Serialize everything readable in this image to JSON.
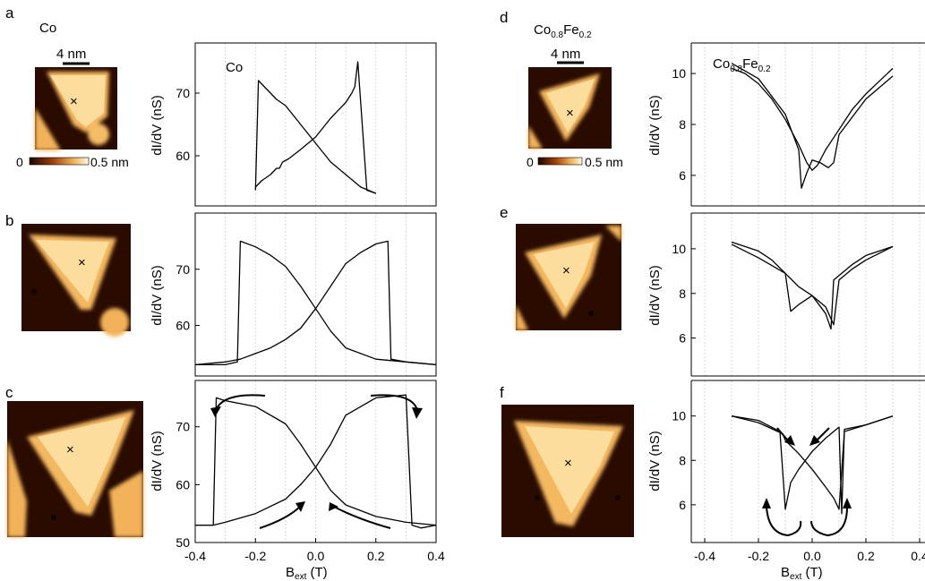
{
  "panels": {
    "a": {
      "letter": "a",
      "material": "Co",
      "scalebar": "4 nm"
    },
    "b": {
      "letter": "b"
    },
    "c": {
      "letter": "c"
    },
    "d": {
      "letter": "d",
      "material": "Co",
      "scalebar": "4 nm"
    },
    "e": {
      "letter": "e"
    },
    "f": {
      "letter": "f"
    }
  },
  "colorbar": {
    "min": "0",
    "max": "0.5 nm"
  },
  "colors": {
    "stm_dark": "#2a0b00",
    "stm_mid": "#b0581a",
    "stm_light": "#f7c978",
    "stm_top": "#fff3d8",
    "line": "#000000"
  },
  "labels": {
    "ylabel_main": "dI/dV (nS)",
    "xlabel_main": "B",
    "xlabel_sub": "ext",
    "xlabel_unit": " (T)",
    "plot_a_title": "Co",
    "alloy_base1": "Co",
    "alloy_sub1": "0.8",
    "alloy_base2": "Fe",
    "alloy_sub2": "0.2"
  },
  "chart_data": [
    {
      "type": "line",
      "panel": "a",
      "title": "Co",
      "xlabel": "Bext (T)",
      "ylabel": "dI/dV (nS)",
      "xlim": [
        -0.4,
        0.4
      ],
      "ylim": [
        52,
        78
      ],
      "yticks": [
        60,
        70
      ],
      "series": [
        {
          "x": [
            -0.2,
            -0.18,
            -0.15,
            -0.13,
            -0.12,
            -0.11,
            -0.09,
            -0.05,
            0.0,
            0.05,
            0.1,
            0.12,
            0.13,
            0.14,
            0.17,
            0.2
          ],
          "values": [
            55,
            56,
            57,
            58,
            58,
            59,
            59.5,
            61,
            63,
            66,
            68.5,
            70,
            71,
            75,
            54.5,
            54
          ]
        },
        {
          "x": [
            0.2,
            0.15,
            0.1,
            0.05,
            0.0,
            -0.05,
            -0.1,
            -0.13,
            -0.15,
            -0.17,
            -0.19,
            -0.2
          ],
          "values": [
            54,
            55,
            57,
            59,
            62,
            65,
            68,
            69,
            70,
            71,
            72,
            54.5
          ]
        }
      ]
    },
    {
      "type": "line",
      "panel": "b",
      "xlabel": "Bext (T)",
      "ylabel": "dI/dV (nS)",
      "xlim": [
        -0.4,
        0.4
      ],
      "ylim": [
        51,
        80
      ],
      "yticks": [
        60,
        70
      ],
      "series": [
        {
          "x": [
            -0.4,
            -0.3,
            -0.25,
            -0.2,
            -0.15,
            -0.1,
            -0.05,
            0.0,
            0.05,
            0.1,
            0.15,
            0.2,
            0.24,
            0.25,
            0.3,
            0.4
          ],
          "values": [
            53,
            53.5,
            54,
            55,
            56,
            57.5,
            59.5,
            63,
            67,
            71,
            73,
            74.5,
            75,
            54,
            53.5,
            53
          ]
        },
        {
          "x": [
            0.4,
            0.3,
            0.2,
            0.1,
            0.05,
            0.0,
            -0.05,
            -0.1,
            -0.15,
            -0.2,
            -0.25,
            -0.26,
            -0.3,
            -0.4
          ],
          "values": [
            53,
            53.5,
            54,
            56,
            59,
            63,
            67,
            70.5,
            72.5,
            74,
            75,
            53.5,
            53,
            53
          ]
        }
      ]
    },
    {
      "type": "line",
      "panel": "c",
      "xlabel": "Bext (T)",
      "ylabel": "dI/dV (nS)",
      "xlim": [
        -0.4,
        0.4
      ],
      "ylim": [
        50,
        78
      ],
      "yticks": [
        50,
        60,
        70
      ],
      "xticks": [
        -0.4,
        -0.2,
        0.0,
        0.2,
        0.4
      ],
      "series": [
        {
          "x": [
            -0.4,
            -0.34,
            -0.3,
            -0.2,
            -0.1,
            -0.05,
            0.0,
            0.05,
            0.1,
            0.2,
            0.3,
            0.32,
            0.35,
            0.4
          ],
          "values": [
            53,
            53,
            53.5,
            55,
            57.5,
            60,
            63,
            67,
            72,
            75,
            75.5,
            53,
            52.5,
            53
          ]
        },
        {
          "x": [
            0.4,
            0.3,
            0.2,
            0.1,
            0.05,
            0.0,
            -0.05,
            -0.1,
            -0.2,
            -0.3,
            -0.33,
            -0.34,
            -0.4
          ],
          "values": [
            53,
            53.5,
            54.5,
            56.5,
            59,
            63,
            67,
            70.5,
            73.5,
            74.5,
            75,
            53,
            53
          ]
        }
      ]
    },
    {
      "type": "line",
      "panel": "d",
      "title": "Co0.8Fe0.2",
      "xlabel": "Bext (T)",
      "ylabel": "dI/dV (nS)",
      "xlim": [
        -0.45,
        0.42
      ],
      "ylim": [
        4.8,
        11.2
      ],
      "yticks": [
        6,
        8,
        10
      ],
      "series": [
        {
          "x": [
            -0.3,
            -0.25,
            -0.2,
            -0.15,
            -0.1,
            -0.05,
            -0.02,
            0.0,
            0.02,
            0.05,
            0.1,
            0.15,
            0.2,
            0.25,
            0.3
          ],
          "values": [
            10.2,
            10,
            9.6,
            9,
            8.2,
            7.2,
            6.5,
            6.2,
            6.4,
            7,
            7.8,
            8.6,
            9.2,
            9.7,
            10.2
          ]
        },
        {
          "x": [
            -0.3,
            -0.2,
            -0.1,
            -0.05,
            -0.04,
            -0.02,
            0.0,
            0.03,
            0.06,
            0.08,
            0.1,
            0.2,
            0.3
          ],
          "values": [
            10.4,
            9.8,
            8.4,
            7,
            5.5,
            6.1,
            6.6,
            6.5,
            6.3,
            6.5,
            7.6,
            9,
            9.9
          ]
        }
      ]
    },
    {
      "type": "line",
      "panel": "e",
      "xlabel": "Bext (T)",
      "ylabel": "dI/dV (nS)",
      "xlim": [
        -0.45,
        0.42
      ],
      "ylim": [
        4.3,
        11.6
      ],
      "yticks": [
        6,
        8,
        10
      ],
      "series": [
        {
          "x": [
            -0.3,
            -0.2,
            -0.15,
            -0.1,
            -0.08,
            -0.05,
            0.0,
            0.05,
            0.08,
            0.1,
            0.15,
            0.2,
            0.3
          ],
          "values": [
            10.3,
            9.9,
            9.5,
            8.9,
            7.2,
            7.5,
            7.9,
            7.4,
            6.6,
            8.6,
            9.1,
            9.5,
            10.1
          ]
        },
        {
          "x": [
            -0.3,
            -0.2,
            -0.1,
            -0.05,
            0.0,
            0.05,
            0.07,
            0.08,
            0.15,
            0.2,
            0.3
          ],
          "values": [
            10.2,
            9.6,
            8.9,
            8.3,
            7.9,
            7.1,
            6.4,
            8.6,
            9.3,
            9.7,
            10.1
          ]
        }
      ]
    },
    {
      "type": "line",
      "panel": "f",
      "xlabel": "Bext (T)",
      "ylabel": "dI/dV (nS)",
      "xlim": [
        -0.45,
        0.42
      ],
      "ylim": [
        4.3,
        11.6
      ],
      "yticks": [
        6,
        8,
        10
      ],
      "xticks": [
        -0.4,
        -0.2,
        0.0,
        0.2,
        0.4
      ],
      "series": [
        {
          "x": [
            -0.3,
            -0.2,
            -0.12,
            -0.1,
            -0.08,
            -0.05,
            0.0,
            0.05,
            0.08,
            0.1,
            0.11,
            0.12,
            0.2,
            0.3
          ],
          "values": [
            10,
            9.8,
            9.3,
            5.8,
            7,
            7.6,
            8.4,
            9,
            9.3,
            9.5,
            5.6,
            9.4,
            9.6,
            10
          ]
        },
        {
          "x": [
            0.3,
            0.2,
            0.12,
            0.1,
            0.08,
            0.05,
            0.0,
            -0.05,
            -0.1,
            -0.11,
            -0.2,
            -0.3
          ],
          "values": [
            10,
            9.6,
            9.3,
            5.8,
            6.3,
            6.8,
            7.6,
            8.3,
            8.9,
            9.2,
            9.7,
            10
          ]
        }
      ]
    }
  ]
}
